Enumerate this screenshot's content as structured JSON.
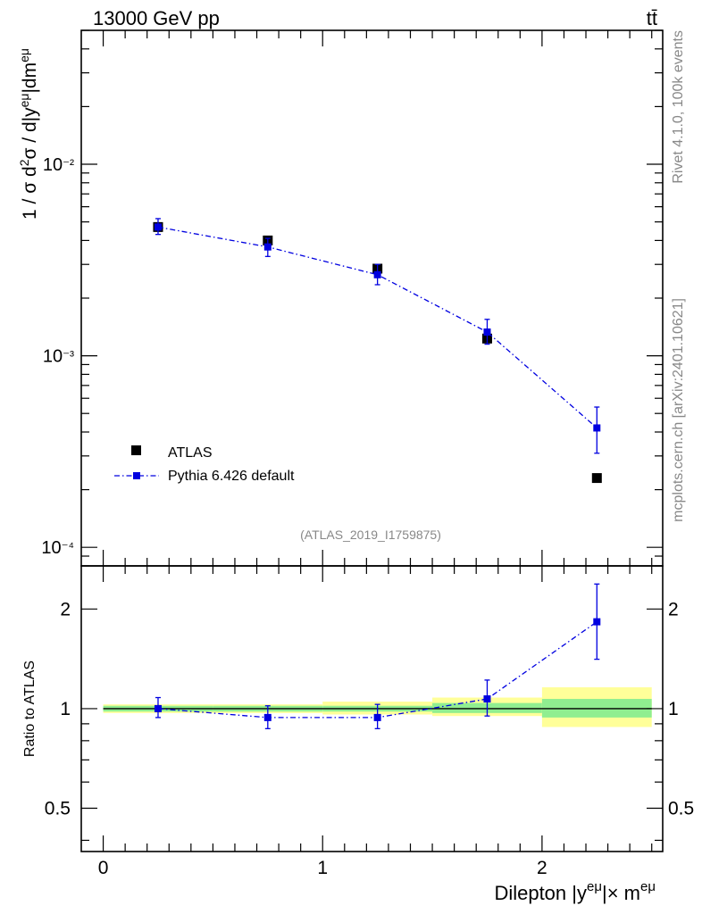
{
  "header": {
    "energy_label": "13000 GeV pp",
    "process_label": "tt̄"
  },
  "side_labels": {
    "rivet": "Rivet 4.1.0,  100k events",
    "mcplots": "mcplots.cern.ch [arXiv:2401.10621]"
  },
  "watermark": "(ATLAS_2019_I1759875)",
  "colors": {
    "data": "#000000",
    "mc": "#0000e0",
    "band_inner": "#90ee90",
    "band_outer": "#ffff99"
  },
  "chart_data": [
    {
      "type": "scatter",
      "panel": "main",
      "yscale": "log",
      "ylabel": "1 / σ  d²σ / d|y^{eμ}|dm^{eμ}",
      "xlim": [
        -0.1,
        2.55
      ],
      "ylim": [
        8e-05,
        0.05
      ],
      "ytick_labels": [
        "10⁻²",
        "10⁻³",
        "10⁻⁴"
      ],
      "ytick_values": [
        0.01,
        0.001,
        0.0001
      ],
      "legend": {
        "position": "lower-left",
        "entries": [
          "ATLAS",
          "Pythia 6.426 default"
        ]
      },
      "series": [
        {
          "name": "ATLAS",
          "style": "square-marker",
          "x": [
            0.25,
            0.75,
            1.25,
            1.75,
            2.25
          ],
          "xerr": [
            0.25,
            0.25,
            0.25,
            0.25,
            0.25
          ],
          "y": [
            0.0047,
            0.004,
            0.00285,
            0.00123,
            0.00023
          ]
        },
        {
          "name": "Pythia 6.426 default",
          "style": "dash-dot-line-square-marker",
          "x": [
            0.25,
            0.75,
            1.25,
            1.75,
            2.25
          ],
          "y": [
            0.0047,
            0.0037,
            0.00265,
            0.00133,
            0.00042
          ],
          "yerr_up": [
            0.0005,
            0.0004,
            0.00035,
            0.00022,
            0.00012
          ],
          "yerr_down": [
            0.0004,
            0.0004,
            0.0003,
            0.00018,
            0.00011
          ]
        }
      ]
    },
    {
      "type": "line",
      "panel": "ratio",
      "yscale": "log",
      "ylabel": "Ratio to ATLAS",
      "xlabel": "Dilepton |y^{eμ}|× m^{eμ}",
      "xlim": [
        -0.1,
        2.55
      ],
      "ylim": [
        0.37,
        2.7
      ],
      "xtick_values": [
        0,
        1,
        2
      ],
      "xtick_labels": [
        "0",
        "1",
        "2"
      ],
      "ytick_values": [
        2,
        1,
        0.5
      ],
      "ytick_labels": [
        "2",
        "1",
        "0.5"
      ],
      "reference_line": 1,
      "bands": {
        "bins": [
          [
            0,
            0.5
          ],
          [
            0.5,
            1.0
          ],
          [
            1.0,
            1.5
          ],
          [
            1.5,
            2.0
          ],
          [
            2.0,
            2.5
          ]
        ],
        "inner": [
          [
            0.98,
            1.02
          ],
          [
            0.98,
            1.02
          ],
          [
            0.98,
            1.02
          ],
          [
            0.97,
            1.04
          ],
          [
            0.94,
            1.07
          ]
        ],
        "outer": [
          [
            0.97,
            1.03
          ],
          [
            0.97,
            1.03
          ],
          [
            0.96,
            1.05
          ],
          [
            0.95,
            1.08
          ],
          [
            0.88,
            1.16
          ]
        ]
      },
      "series": [
        {
          "name": "Pythia 6.426 default",
          "x": [
            0.25,
            0.75,
            1.25,
            1.75,
            2.25
          ],
          "y": [
            1.0,
            0.94,
            0.94,
            1.07,
            1.83
          ],
          "yerr_up": [
            0.08,
            0.08,
            0.09,
            0.15,
            0.55
          ],
          "yerr_down": [
            0.06,
            0.07,
            0.07,
            0.12,
            0.42
          ]
        }
      ]
    }
  ]
}
